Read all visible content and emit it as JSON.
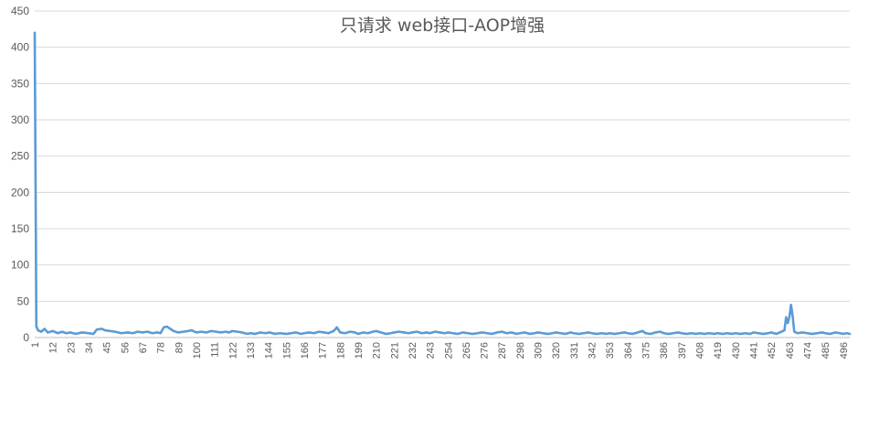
{
  "chart_data": {
    "type": "line",
    "title": "只请求 web接口-AOP增强",
    "xlabel": "",
    "ylabel": "",
    "ylim": [
      0,
      450
    ],
    "y_ticks": [
      "0",
      "50",
      "100",
      "150",
      "200",
      "250",
      "300",
      "350",
      "400",
      "450"
    ],
    "x_range": [
      1,
      500
    ],
    "x_ticks": [
      1,
      12,
      23,
      34,
      45,
      56,
      67,
      78,
      89,
      100,
      111,
      122,
      133,
      144,
      155,
      166,
      177,
      188,
      199,
      210,
      221,
      232,
      243,
      254,
      265,
      276,
      287,
      298,
      309,
      320,
      331,
      342,
      353,
      364,
      375,
      386,
      397,
      408,
      419,
      430,
      441,
      452,
      463,
      474,
      485,
      496
    ],
    "grid": true,
    "legend": "none",
    "series": [
      {
        "color": "#5b9bd5",
        "points": [
          [
            1,
            420
          ],
          [
            2,
            15
          ],
          [
            3,
            10
          ],
          [
            5,
            8
          ],
          [
            7,
            12
          ],
          [
            9,
            7
          ],
          [
            12,
            9
          ],
          [
            15,
            6
          ],
          [
            18,
            8
          ],
          [
            20,
            6
          ],
          [
            23,
            7
          ],
          [
            26,
            5
          ],
          [
            30,
            7
          ],
          [
            34,
            6
          ],
          [
            37,
            5
          ],
          [
            39,
            11
          ],
          [
            42,
            12
          ],
          [
            44,
            10
          ],
          [
            47,
            9
          ],
          [
            50,
            8
          ],
          [
            54,
            6
          ],
          [
            58,
            7
          ],
          [
            61,
            6
          ],
          [
            64,
            8
          ],
          [
            67,
            7
          ],
          [
            70,
            8
          ],
          [
            73,
            6
          ],
          [
            76,
            7
          ],
          [
            78,
            6
          ],
          [
            80,
            14
          ],
          [
            82,
            15
          ],
          [
            84,
            12
          ],
          [
            86,
            9
          ],
          [
            89,
            7
          ],
          [
            92,
            8
          ],
          [
            95,
            9
          ],
          [
            97,
            10
          ],
          [
            100,
            7
          ],
          [
            103,
            8
          ],
          [
            106,
            7
          ],
          [
            109,
            9
          ],
          [
            112,
            8
          ],
          [
            115,
            7
          ],
          [
            118,
            8
          ],
          [
            120,
            7
          ],
          [
            122,
            9
          ],
          [
            125,
            8
          ],
          [
            128,
            7
          ],
          [
            131,
            5
          ],
          [
            133,
            6
          ],
          [
            136,
            5
          ],
          [
            139,
            7
          ],
          [
            142,
            6
          ],
          [
            145,
            7
          ],
          [
            148,
            5
          ],
          [
            151,
            6
          ],
          [
            155,
            5
          ],
          [
            158,
            6
          ],
          [
            161,
            7
          ],
          [
            164,
            5
          ],
          [
            166,
            6
          ],
          [
            169,
            7
          ],
          [
            172,
            6
          ],
          [
            175,
            8
          ],
          [
            178,
            7
          ],
          [
            181,
            6
          ],
          [
            184,
            9
          ],
          [
            186,
            14
          ],
          [
            188,
            7
          ],
          [
            191,
            6
          ],
          [
            194,
            8
          ],
          [
            197,
            7
          ],
          [
            199,
            5
          ],
          [
            202,
            7
          ],
          [
            205,
            6
          ],
          [
            208,
            8
          ],
          [
            210,
            9
          ],
          [
            213,
            7
          ],
          [
            216,
            5
          ],
          [
            219,
            6
          ],
          [
            221,
            7
          ],
          [
            224,
            8
          ],
          [
            227,
            7
          ],
          [
            230,
            6
          ],
          [
            232,
            7
          ],
          [
            235,
            8
          ],
          [
            238,
            6
          ],
          [
            241,
            7
          ],
          [
            243,
            6
          ],
          [
            246,
            8
          ],
          [
            249,
            7
          ],
          [
            252,
            6
          ],
          [
            254,
            7
          ],
          [
            257,
            6
          ],
          [
            260,
            5
          ],
          [
            263,
            7
          ],
          [
            266,
            6
          ],
          [
            269,
            5
          ],
          [
            272,
            6
          ],
          [
            275,
            7
          ],
          [
            278,
            6
          ],
          [
            281,
            5
          ],
          [
            284,
            7
          ],
          [
            287,
            8
          ],
          [
            290,
            6
          ],
          [
            293,
            7
          ],
          [
            296,
            5
          ],
          [
            298,
            6
          ],
          [
            301,
            7
          ],
          [
            304,
            5
          ],
          [
            307,
            6
          ],
          [
            309,
            7
          ],
          [
            312,
            6
          ],
          [
            315,
            5
          ],
          [
            318,
            6
          ],
          [
            320,
            7
          ],
          [
            323,
            6
          ],
          [
            326,
            5
          ],
          [
            329,
            7
          ],
          [
            331,
            6
          ],
          [
            334,
            5
          ],
          [
            337,
            6
          ],
          [
            340,
            7
          ],
          [
            342,
            6
          ],
          [
            345,
            5
          ],
          [
            348,
            6
          ],
          [
            351,
            5
          ],
          [
            353,
            6
          ],
          [
            356,
            5
          ],
          [
            359,
            6
          ],
          [
            362,
            7
          ],
          [
            364,
            6
          ],
          [
            367,
            5
          ],
          [
            370,
            7
          ],
          [
            373,
            9
          ],
          [
            375,
            6
          ],
          [
            378,
            5
          ],
          [
            381,
            7
          ],
          [
            384,
            8
          ],
          [
            386,
            6
          ],
          [
            389,
            5
          ],
          [
            392,
            6
          ],
          [
            395,
            7
          ],
          [
            397,
            6
          ],
          [
            400,
            5
          ],
          [
            403,
            6
          ],
          [
            406,
            5
          ],
          [
            408,
            6
          ],
          [
            411,
            5
          ],
          [
            414,
            6
          ],
          [
            417,
            5
          ],
          [
            419,
            6
          ],
          [
            422,
            5
          ],
          [
            425,
            6
          ],
          [
            428,
            5
          ],
          [
            430,
            6
          ],
          [
            433,
            5
          ],
          [
            436,
            6
          ],
          [
            439,
            5
          ],
          [
            441,
            7
          ],
          [
            444,
            6
          ],
          [
            447,
            5
          ],
          [
            450,
            6
          ],
          [
            452,
            7
          ],
          [
            455,
            5
          ],
          [
            458,
            8
          ],
          [
            460,
            10
          ],
          [
            461,
            28
          ],
          [
            462,
            20
          ],
          [
            463,
            28
          ],
          [
            464,
            45
          ],
          [
            465,
            30
          ],
          [
            466,
            8
          ],
          [
            468,
            6
          ],
          [
            471,
            7
          ],
          [
            474,
            6
          ],
          [
            477,
            5
          ],
          [
            480,
            6
          ],
          [
            483,
            7
          ],
          [
            485,
            6
          ],
          [
            488,
            5
          ],
          [
            491,
            7
          ],
          [
            494,
            6
          ],
          [
            496,
            5
          ],
          [
            498,
            6
          ],
          [
            500,
            5
          ]
        ]
      }
    ]
  }
}
